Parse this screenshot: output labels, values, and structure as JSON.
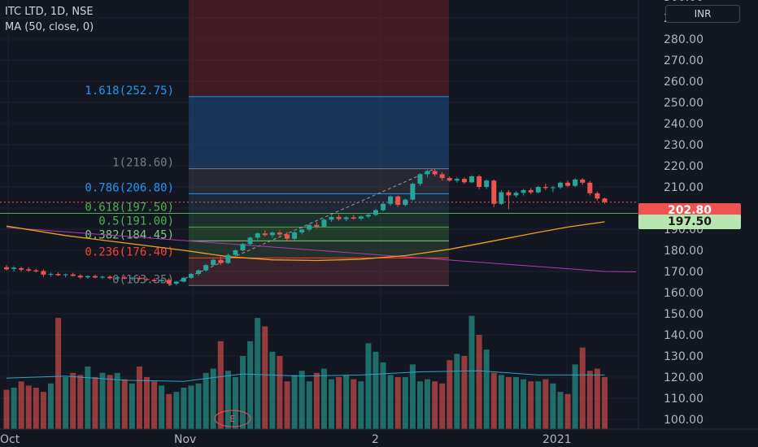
{
  "legend": {
    "symbol": "ITC LTD, 1D, NSE",
    "indicator": "MA (50, close, 0)"
  },
  "currency": "INR",
  "price_tags": {
    "current": "202.80",
    "fib": "197.50"
  },
  "chart_data": {
    "type": "candlestick",
    "y_axis": {
      "ticks": [
        100,
        110,
        120,
        130,
        140,
        150,
        160,
        170,
        180,
        190,
        200,
        210,
        220,
        230,
        240,
        250,
        260,
        270,
        280,
        290,
        300
      ],
      "tick_labels": [
        "100.00",
        "110.00",
        "120.00",
        "130.00",
        "140.00",
        "150.00",
        "160.00",
        "170.00",
        "180.00",
        "190.00",
        "",
        "210.00",
        "220.00",
        "230.00",
        "240.00",
        "250.00",
        "260.00",
        "270.00",
        "280.00",
        "290.00",
        "300.00"
      ],
      "range": [
        97.5,
        301.5
      ]
    },
    "x_axis": {
      "labels": [
        "Oct",
        "Nov",
        "2",
        "2021"
      ]
    },
    "fib_levels": [
      {
        "label": "1.618(252.75)",
        "value": 252.75,
        "color": "#2196f3"
      },
      {
        "label": "1(218.60)",
        "value": 218.6,
        "color": "#787b86"
      },
      {
        "label": "0.786(206.80)",
        "value": 206.8,
        "color": "#2196f3"
      },
      {
        "label": "0.618(197.50)",
        "value": 197.5,
        "color": "#4caf50"
      },
      {
        "label": "0.5(191.00)",
        "value": 191.0,
        "color": "#4caf50"
      },
      {
        "label": "0.382(184.45)",
        "value": 184.45,
        "color": "#81c784"
      },
      {
        "label": "0.236(176.40)",
        "value": 176.4,
        "color": "#f44336"
      },
      {
        "label": "0(163.35)",
        "value": 163.35,
        "color": "#787b86"
      }
    ],
    "current_price": 202.8,
    "candles": [
      {
        "o": 172.0,
        "h": 173.0,
        "l": 170.5,
        "c": 171.0
      },
      {
        "o": 171.2,
        "h": 172.5,
        "l": 170.0,
        "c": 171.8
      },
      {
        "o": 171.5,
        "h": 172.2,
        "l": 170.0,
        "c": 170.8
      },
      {
        "o": 171.0,
        "h": 172.0,
        "l": 169.8,
        "c": 170.4
      },
      {
        "o": 170.5,
        "h": 171.2,
        "l": 169.5,
        "c": 170.0
      },
      {
        "o": 170.2,
        "h": 171.0,
        "l": 167.5,
        "c": 168.5
      },
      {
        "o": 168.5,
        "h": 169.5,
        "l": 167.5,
        "c": 168.8
      },
      {
        "o": 168.8,
        "h": 169.6,
        "l": 167.8,
        "c": 168.2
      },
      {
        "o": 168.2,
        "h": 169.0,
        "l": 167.2,
        "c": 168.6
      },
      {
        "o": 168.6,
        "h": 169.4,
        "l": 167.6,
        "c": 167.9
      },
      {
        "o": 168.0,
        "h": 168.8,
        "l": 166.5,
        "c": 167.2
      },
      {
        "o": 167.2,
        "h": 168.2,
        "l": 166.5,
        "c": 167.8
      },
      {
        "o": 167.8,
        "h": 168.5,
        "l": 166.8,
        "c": 167.1
      },
      {
        "o": 167.1,
        "h": 168.0,
        "l": 166.4,
        "c": 167.5
      },
      {
        "o": 167.5,
        "h": 168.2,
        "l": 166.2,
        "c": 166.8
      },
      {
        "o": 166.8,
        "h": 167.6,
        "l": 166.0,
        "c": 167.2
      },
      {
        "o": 167.2,
        "h": 168.0,
        "l": 166.3,
        "c": 166.6
      },
      {
        "o": 166.6,
        "h": 167.4,
        "l": 165.8,
        "c": 167.0
      },
      {
        "o": 167.0,
        "h": 167.8,
        "l": 166.0,
        "c": 166.4
      },
      {
        "o": 166.4,
        "h": 167.0,
        "l": 165.5,
        "c": 166.0
      },
      {
        "o": 166.0,
        "h": 166.8,
        "l": 164.8,
        "c": 165.4
      },
      {
        "o": 165.4,
        "h": 166.5,
        "l": 164.5,
        "c": 166.0
      },
      {
        "o": 166.0,
        "h": 166.8,
        "l": 163.35,
        "c": 164.2
      },
      {
        "o": 164.2,
        "h": 165.5,
        "l": 163.5,
        "c": 165.2
      },
      {
        "o": 165.2,
        "h": 167.5,
        "l": 164.8,
        "c": 167.0
      },
      {
        "o": 167.0,
        "h": 169.2,
        "l": 166.5,
        "c": 168.8
      },
      {
        "o": 168.8,
        "h": 171.0,
        "l": 168.0,
        "c": 170.5
      },
      {
        "o": 170.5,
        "h": 173.5,
        "l": 170.0,
        "c": 173.0
      },
      {
        "o": 173.0,
        "h": 176.0,
        "l": 172.5,
        "c": 175.5
      },
      {
        "o": 175.5,
        "h": 177.0,
        "l": 173.0,
        "c": 174.0
      },
      {
        "o": 174.0,
        "h": 178.5,
        "l": 173.5,
        "c": 177.8
      },
      {
        "o": 177.8,
        "h": 180.5,
        "l": 177.0,
        "c": 180.0
      },
      {
        "o": 180.0,
        "h": 183.5,
        "l": 179.5,
        "c": 183.0
      },
      {
        "o": 183.0,
        "h": 186.5,
        "l": 182.5,
        "c": 186.0
      },
      {
        "o": 186.0,
        "h": 188.5,
        "l": 185.0,
        "c": 188.0
      },
      {
        "o": 188.0,
        "h": 189.5,
        "l": 186.5,
        "c": 187.2
      },
      {
        "o": 187.2,
        "h": 189.0,
        "l": 186.0,
        "c": 188.4
      },
      {
        "o": 188.4,
        "h": 189.5,
        "l": 186.8,
        "c": 187.5
      },
      {
        "o": 187.5,
        "h": 188.8,
        "l": 184.5,
        "c": 185.5
      },
      {
        "o": 185.5,
        "h": 189.0,
        "l": 184.8,
        "c": 188.5
      },
      {
        "o": 188.5,
        "h": 190.5,
        "l": 187.5,
        "c": 189.8
      },
      {
        "o": 189.8,
        "h": 192.5,
        "l": 189.0,
        "c": 192.0
      },
      {
        "o": 192.0,
        "h": 193.5,
        "l": 190.5,
        "c": 191.2
      },
      {
        "o": 191.2,
        "h": 195.0,
        "l": 190.8,
        "c": 194.5
      },
      {
        "o": 194.5,
        "h": 196.5,
        "l": 193.5,
        "c": 195.8
      },
      {
        "o": 195.8,
        "h": 197.0,
        "l": 194.0,
        "c": 194.8
      },
      {
        "o": 194.8,
        "h": 196.2,
        "l": 193.8,
        "c": 195.6
      },
      {
        "o": 195.6,
        "h": 196.8,
        "l": 194.5,
        "c": 195.0
      },
      {
        "o": 195.0,
        "h": 196.5,
        "l": 194.2,
        "c": 196.0
      },
      {
        "o": 196.0,
        "h": 197.5,
        "l": 195.2,
        "c": 196.8
      },
      {
        "o": 196.8,
        "h": 199.5,
        "l": 196.2,
        "c": 199.0
      },
      {
        "o": 199.0,
        "h": 202.5,
        "l": 198.5,
        "c": 202.0
      },
      {
        "o": 202.0,
        "h": 206.0,
        "l": 201.0,
        "c": 205.5
      },
      {
        "o": 205.5,
        "h": 206.0,
        "l": 200.5,
        "c": 201.5
      },
      {
        "o": 201.5,
        "h": 204.5,
        "l": 200.8,
        "c": 204.0
      },
      {
        "o": 204.0,
        "h": 212.0,
        "l": 203.5,
        "c": 211.5
      },
      {
        "o": 211.5,
        "h": 216.5,
        "l": 210.5,
        "c": 216.0
      },
      {
        "o": 216.0,
        "h": 218.2,
        "l": 214.5,
        "c": 217.5
      },
      {
        "o": 217.5,
        "h": 218.6,
        "l": 215.0,
        "c": 216.0
      },
      {
        "o": 216.0,
        "h": 217.0,
        "l": 213.0,
        "c": 214.2
      },
      {
        "o": 214.2,
        "h": 215.0,
        "l": 212.5,
        "c": 213.0
      },
      {
        "o": 213.0,
        "h": 214.5,
        "l": 212.0,
        "c": 213.8
      },
      {
        "o": 213.8,
        "h": 214.5,
        "l": 211.5,
        "c": 212.2
      },
      {
        "o": 212.2,
        "h": 215.5,
        "l": 211.8,
        "c": 215.0
      },
      {
        "o": 215.0,
        "h": 215.8,
        "l": 209.0,
        "c": 210.0
      },
      {
        "o": 210.0,
        "h": 213.5,
        "l": 209.0,
        "c": 213.0
      },
      {
        "o": 213.0,
        "h": 213.5,
        "l": 200.5,
        "c": 202.0
      },
      {
        "o": 202.0,
        "h": 208.5,
        "l": 201.5,
        "c": 207.5
      },
      {
        "o": 207.5,
        "h": 208.5,
        "l": 199.5,
        "c": 206.0
      },
      {
        "o": 206.0,
        "h": 208.0,
        "l": 205.0,
        "c": 207.2
      },
      {
        "o": 207.2,
        "h": 209.0,
        "l": 206.0,
        "c": 208.5
      },
      {
        "o": 208.5,
        "h": 209.5,
        "l": 206.5,
        "c": 207.4
      },
      {
        "o": 207.4,
        "h": 210.5,
        "l": 207.0,
        "c": 210.0
      },
      {
        "o": 210.0,
        "h": 211.5,
        "l": 208.5,
        "c": 209.5
      },
      {
        "o": 209.5,
        "h": 210.5,
        "l": 207.5,
        "c": 209.8
      },
      {
        "o": 209.8,
        "h": 212.5,
        "l": 209.0,
        "c": 212.0
      },
      {
        "o": 212.0,
        "h": 213.0,
        "l": 209.8,
        "c": 210.5
      },
      {
        "o": 210.5,
        "h": 214.0,
        "l": 210.0,
        "c": 213.5
      },
      {
        "o": 213.5,
        "h": 214.2,
        "l": 211.0,
        "c": 212.0
      },
      {
        "o": 212.0,
        "h": 212.8,
        "l": 206.0,
        "c": 207.0
      },
      {
        "o": 207.0,
        "h": 207.8,
        "l": 203.5,
        "c": 204.5
      },
      {
        "o": 204.5,
        "h": 205.0,
        "l": 202.0,
        "c": 202.8
      }
    ],
    "ma_points": [
      [
        0,
        191.5
      ],
      [
        8,
        187.0
      ],
      [
        16,
        183.5
      ],
      [
        24,
        180.0
      ],
      [
        30,
        177.0
      ],
      [
        36,
        175.5
      ],
      [
        42,
        175.2
      ],
      [
        48,
        175.8
      ],
      [
        54,
        177.5
      ],
      [
        60,
        180.5
      ],
      [
        66,
        184.5
      ],
      [
        72,
        188.5
      ],
      [
        76,
        191.0
      ],
      [
        81,
        193.5
      ]
    ],
    "trendline": [
      [
        0,
        190.8
      ],
      [
        81,
        170.0
      ]
    ],
    "volume": {
      "ticks": [
        100,
        110,
        120,
        130,
        140,
        150
      ],
      "bars": [
        114,
        115,
        118,
        116,
        115,
        113,
        117,
        148,
        120,
        122,
        121,
        125,
        120,
        122,
        121,
        122,
        119,
        117,
        125,
        120,
        118,
        116,
        112,
        113,
        115,
        116,
        117,
        122,
        124,
        137,
        123,
        120,
        130,
        137,
        148,
        144,
        132,
        130,
        118,
        121,
        123,
        118,
        122,
        124,
        119,
        120,
        121,
        119,
        118,
        136,
        132,
        127,
        121,
        120,
        120,
        126,
        118,
        119,
        118,
        117,
        128,
        131,
        130,
        149,
        140,
        133,
        122,
        121,
        120,
        120,
        119,
        118,
        118,
        119,
        117,
        113,
        112,
        126,
        134,
        123,
        124,
        120
      ],
      "baseline_ma": [
        [
          0,
          119.5
        ],
        [
          8,
          120.5
        ],
        [
          16,
          118.5
        ],
        [
          24,
          118.0
        ],
        [
          32,
          121.5
        ],
        [
          40,
          120.5
        ],
        [
          48,
          121.0
        ],
        [
          56,
          122.5
        ],
        [
          64,
          123.0
        ],
        [
          72,
          121.0
        ],
        [
          81,
          121.0
        ]
      ]
    }
  }
}
